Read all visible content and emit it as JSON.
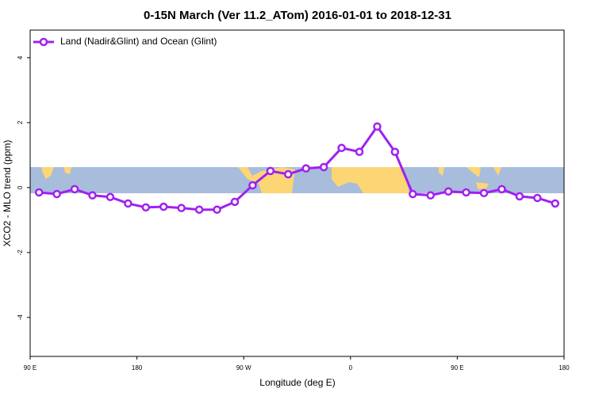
{
  "chart_data": {
    "type": "line",
    "title": "0-15N March (Ver 11.2_ATom)   2016-01-01 to 2018-12-31",
    "x_label": "Longitude (deg E)",
    "y_label": "XCO2 - MLO trend (ppm)",
    "x": [
      97.5,
      112.5,
      127.5,
      142.5,
      157.5,
      172.5,
      187.5,
      202.5,
      217.5,
      232.5,
      247.5,
      262.5,
      277.5,
      292.5,
      307.5,
      322.5,
      337.5,
      352.5,
      367.5,
      382.5,
      397.5,
      412.5,
      427.5,
      442.5,
      457.5,
      472.5,
      487.5,
      502.5,
      517.5,
      532.5
    ],
    "series": [
      {
        "name": "Land (Nadir&Glint) and Ocean (Glint)",
        "color": "#a020f0",
        "values": [
          -0.15,
          -0.2,
          -0.05,
          -0.24,
          -0.29,
          -0.49,
          -0.61,
          -0.59,
          -0.63,
          -0.68,
          -0.68,
          -0.44,
          0.07,
          0.51,
          0.41,
          0.59,
          0.63,
          1.22,
          1.1,
          1.88,
          1.1,
          -0.2,
          -0.24,
          -0.12,
          -0.15,
          -0.17,
          -0.05,
          -0.27,
          -0.32,
          -0.49
        ]
      }
    ],
    "xlim": [
      90,
      540
    ],
    "xticks": [
      {
        "value": 90,
        "label": "90 E"
      },
      {
        "value": 180,
        "label": "180"
      },
      {
        "value": 270,
        "label": "90 W"
      },
      {
        "value": 360,
        "label": "0"
      },
      {
        "value": 450,
        "label": "90 E"
      },
      {
        "value": 540,
        "label": "180"
      }
    ],
    "ylim": [
      -5.2,
      4.85
    ],
    "yticks": [
      -4,
      -2,
      0,
      2,
      4
    ],
    "legend": "top-left"
  }
}
